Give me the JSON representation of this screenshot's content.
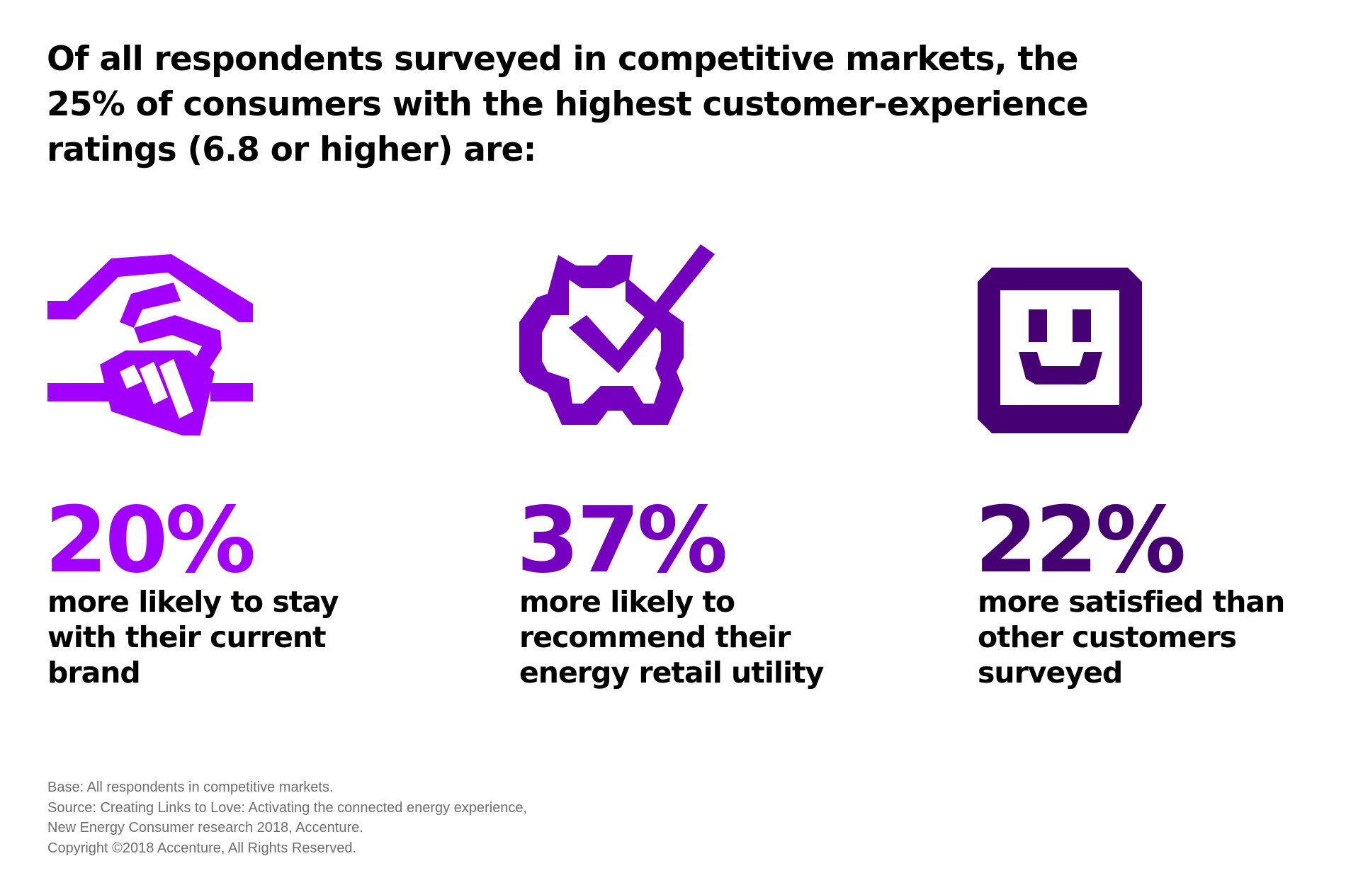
{
  "headline": {
    "line1": "Of all respondents surveyed in competitive markets, the",
    "line2": "25% of consumers with the highest customer-experience",
    "line3": "ratings (6.8 or higher) are:"
  },
  "colors": {
    "stat1": "#a100ff",
    "stat2": "#7500c0",
    "stat3": "#460073",
    "footnote": "#6e6e6e"
  },
  "stats": [
    {
      "icon": "handshake-icon",
      "value": "20%",
      "desc": [
        "more likely to stay",
        "with their current",
        "brand"
      ]
    },
    {
      "icon": "gear-checkmark-icon",
      "value": "37%",
      "desc": [
        "more likely to",
        "recommend their",
        "energy retail utility"
      ]
    },
    {
      "icon": "smiley-face-icon",
      "value": "22%",
      "desc": [
        "more satisfied than",
        "other customers",
        "surveyed"
      ]
    }
  ],
  "footnote": {
    "line1": "Base: All respondents in competitive markets.",
    "line2": "Source: Creating Links to Love: Activating the connected energy experience,",
    "line3": "New Energy Consumer research 2018, Accenture.",
    "line4": "Copyright ©2018 Accenture, All Rights Reserved."
  }
}
